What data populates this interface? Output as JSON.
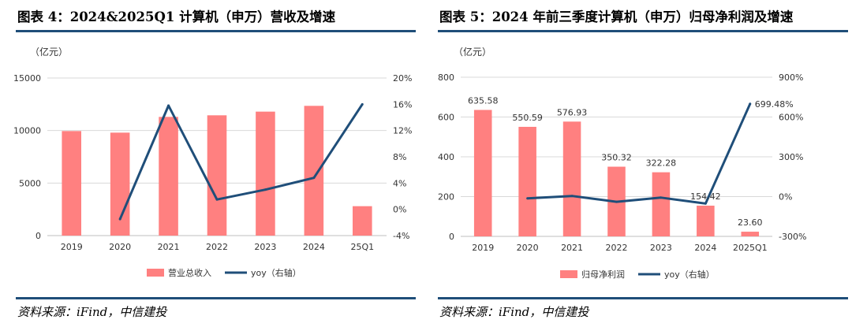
{
  "source_label": "资料来源：iFind，中信建投",
  "charts": [
    {
      "title": "图表 4：2024&2025Q1 计算机（申万）营收及增速",
      "unit_label": "（亿元）",
      "colors": {
        "bar": "#ff8080",
        "line": "#1f4e79"
      },
      "chart_data": {
        "type": "bar",
        "categories": [
          "2019",
          "2020",
          "2021",
          "2022",
          "2023",
          "2024",
          "25Q1"
        ],
        "series": [
          {
            "name": "营业总收入",
            "type": "bar",
            "axis": "left",
            "values": [
              9950,
              9800,
              11300,
              11450,
              11800,
              12350,
              2800
            ]
          },
          {
            "name": "yoy（右轴）",
            "type": "line",
            "axis": "right",
            "values": [
              null,
              -1.5,
              15.8,
              1.5,
              3.0,
              4.8,
              16.0
            ]
          }
        ],
        "y_left": {
          "min": 0,
          "max": 15000,
          "ticks": [
            0,
            5000,
            10000,
            15000
          ],
          "tick_labels": [
            "0",
            "5000",
            "10000",
            "15000"
          ]
        },
        "y_right": {
          "min": -4,
          "max": 20,
          "ticks": [
            -4,
            0,
            4,
            8,
            12,
            16,
            20
          ],
          "tick_labels": [
            "-4%",
            "0%",
            "4%",
            "8%",
            "12%",
            "16%",
            "20%"
          ]
        },
        "data_labels": null,
        "grid": true,
        "legend": "bottom"
      }
    },
    {
      "title": "图表 5：2024 年前三季度计算机（申万）归母净利润及增速",
      "unit_label": "（亿元）",
      "colors": {
        "bar": "#ff8080",
        "line": "#1f4e79"
      },
      "chart_data": {
        "type": "bar",
        "categories": [
          "2019",
          "2020",
          "2021",
          "2022",
          "2023",
          "2024",
          "2025Q1"
        ],
        "series": [
          {
            "name": "归母净利润",
            "type": "bar",
            "axis": "left",
            "values": [
              635.58,
              550.59,
              576.93,
              350.32,
              322.28,
              154.42,
              23.6
            ]
          },
          {
            "name": "yoy（右轴）",
            "type": "line",
            "axis": "right",
            "values": [
              null,
              -13.4,
              4.8,
              -39.3,
              -8.0,
              -52.1,
              699.48
            ]
          }
        ],
        "y_left": {
          "min": 0,
          "max": 800,
          "ticks": [
            0,
            200,
            400,
            600,
            800
          ],
          "tick_labels": [
            "0",
            "200",
            "400",
            "600",
            "800"
          ]
        },
        "y_right": {
          "min": -300,
          "max": 900,
          "ticks": [
            -300,
            0,
            300,
            600,
            900
          ],
          "tick_labels": [
            "-300%",
            "0%",
            "300%",
            "600%",
            "900%"
          ]
        },
        "data_labels": [
          "635.58",
          "550.59",
          "576.93",
          "350.32",
          "322.28",
          "154.42",
          "23.60"
        ],
        "line_label": {
          "index": 6,
          "text": "699.48%"
        },
        "grid": true,
        "legend": "bottom"
      }
    }
  ]
}
